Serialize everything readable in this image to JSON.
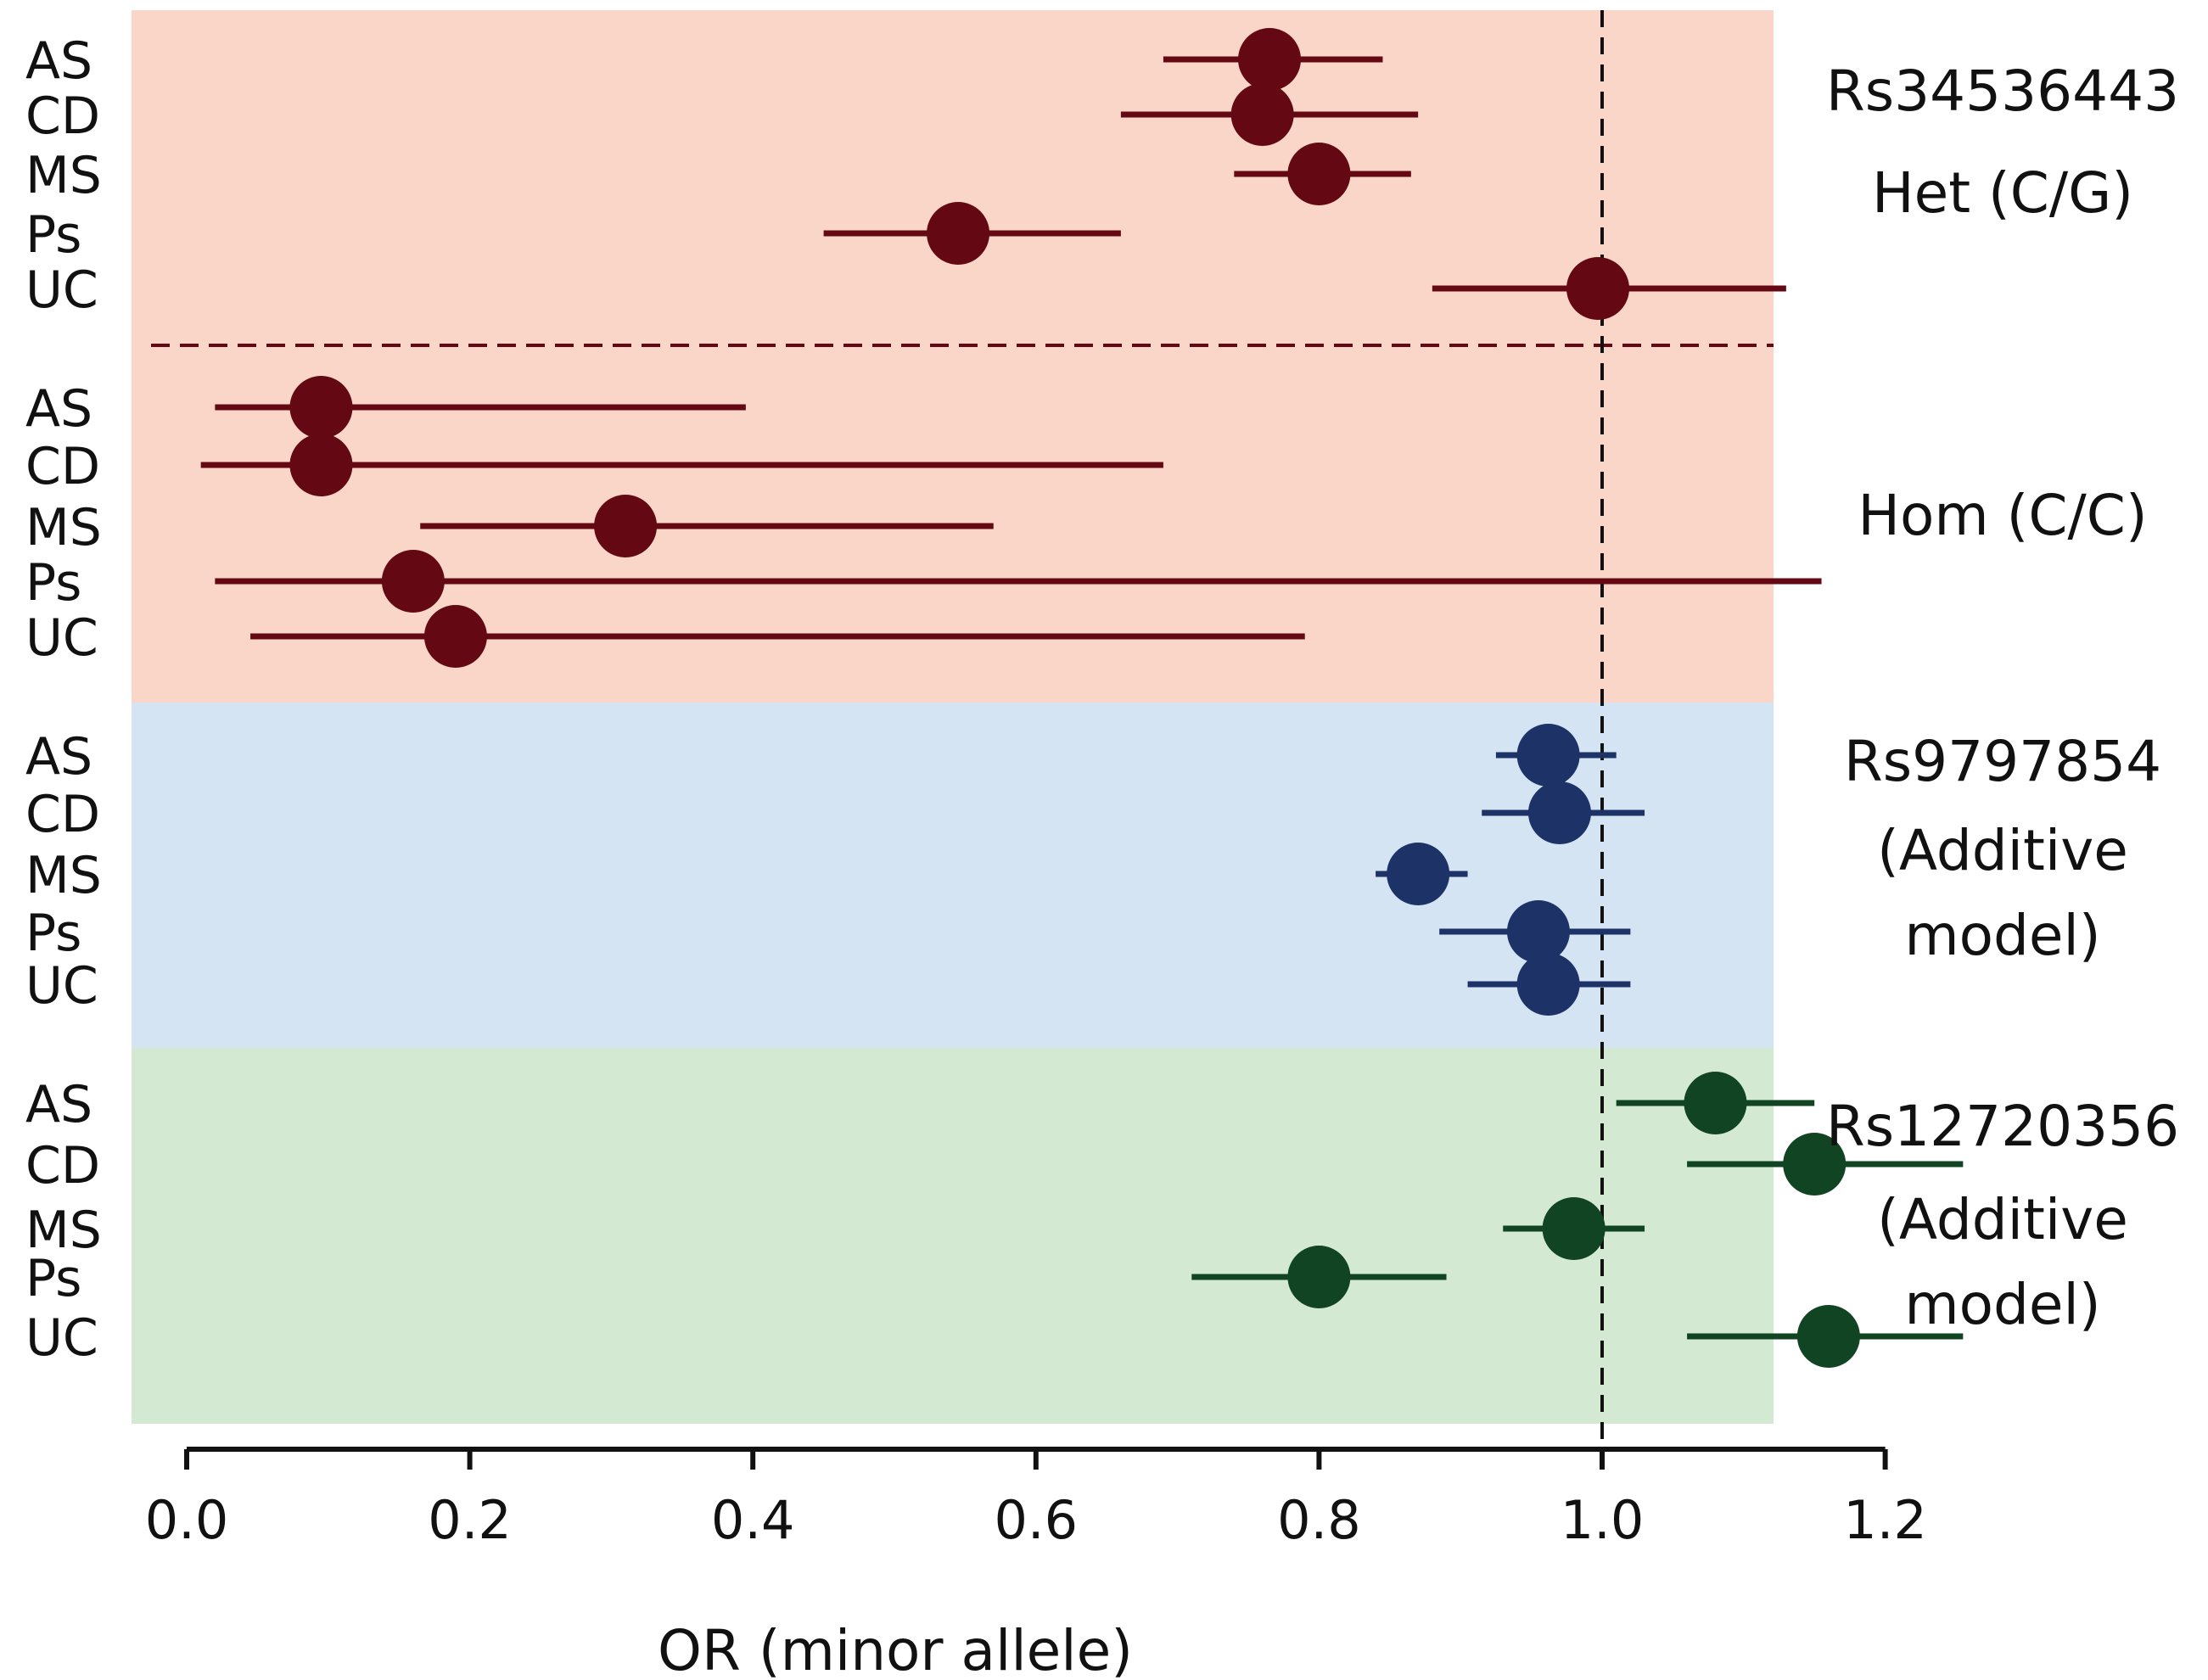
{
  "chart_data": {
    "type": "forest",
    "xlabel": "OR (minor allele)",
    "ticks": [
      "0.0",
      "0.2",
      "0.4",
      "0.6",
      "0.8",
      "1.0",
      "1.2"
    ],
    "tick_values": [
      0,
      0.2,
      0.4,
      0.6,
      0.8,
      1.0,
      1.2
    ],
    "xlim": [
      -0.045,
      1.35
    ],
    "reference_line": 1.0,
    "colors": {
      "panel_rs34536443": "#fad6c8",
      "panel_rs9797854": "#d5e4f3",
      "panel_rs12720356": "#d4e9d2",
      "series_rs34536443": "#640913",
      "series_rs9797854": "#1d3266",
      "series_rs12720356": "#114422"
    },
    "groups": [
      {
        "label_lines": [
          "Rs34536443",
          "Het (C/G)"
        ],
        "panel": "rs34536443",
        "points": [
          {
            "label": "AS",
            "or": 0.765,
            "lo": 0.69,
            "hi": 0.845
          },
          {
            "label": "CD",
            "or": 0.76,
            "lo": 0.66,
            "hi": 0.87
          },
          {
            "label": "MS",
            "or": 0.8,
            "lo": 0.74,
            "hi": 0.865
          },
          {
            "label": "Ps",
            "or": 0.545,
            "lo": 0.45,
            "hi": 0.66
          },
          {
            "label": "UC",
            "or": 0.997,
            "lo": 0.88,
            "hi": 1.13
          }
        ]
      },
      {
        "label_lines": [
          "Hom (C/C)"
        ],
        "panel": "rs34536443",
        "points": [
          {
            "label": "AS",
            "or": 0.095,
            "lo": 0.02,
            "hi": 0.395
          },
          {
            "label": "CD",
            "or": 0.095,
            "lo": 0.01,
            "hi": 0.69
          },
          {
            "label": "MS",
            "or": 0.31,
            "lo": 0.165,
            "hi": 0.57
          },
          {
            "label": "Ps",
            "or": 0.16,
            "lo": 0.02,
            "hi": 1.155
          },
          {
            "label": "UC",
            "or": 0.19,
            "lo": 0.045,
            "hi": 0.79
          }
        ]
      },
      {
        "label_lines": [
          "Rs9797854",
          "(Additive",
          "model)"
        ],
        "panel": "rs9797854",
        "points": [
          {
            "label": "AS",
            "or": 0.962,
            "lo": 0.925,
            "hi": 1.01
          },
          {
            "label": "CD",
            "or": 0.97,
            "lo": 0.915,
            "hi": 1.03
          },
          {
            "label": "MS",
            "or": 0.87,
            "lo": 0.84,
            "hi": 0.905
          },
          {
            "label": "Ps",
            "or": 0.955,
            "lo": 0.885,
            "hi": 1.02
          },
          {
            "label": "UC",
            "or": 0.962,
            "lo": 0.905,
            "hi": 1.02
          }
        ]
      },
      {
        "label_lines": [
          "Rs12720356",
          "(Additive",
          "model)"
        ],
        "panel": "rs12720356",
        "points": [
          {
            "label": "AS",
            "or": 1.08,
            "lo": 1.01,
            "hi": 1.15
          },
          {
            "label": "CD",
            "or": 1.15,
            "lo": 1.06,
            "hi": 1.255
          },
          {
            "label": "MS",
            "or": 0.98,
            "lo": 0.93,
            "hi": 1.03
          },
          {
            "label": "Ps",
            "or": 0.8,
            "lo": 0.71,
            "hi": 0.89
          },
          {
            "label": "UC",
            "or": 1.16,
            "lo": 1.06,
            "hi": 1.255
          }
        ]
      }
    ]
  }
}
